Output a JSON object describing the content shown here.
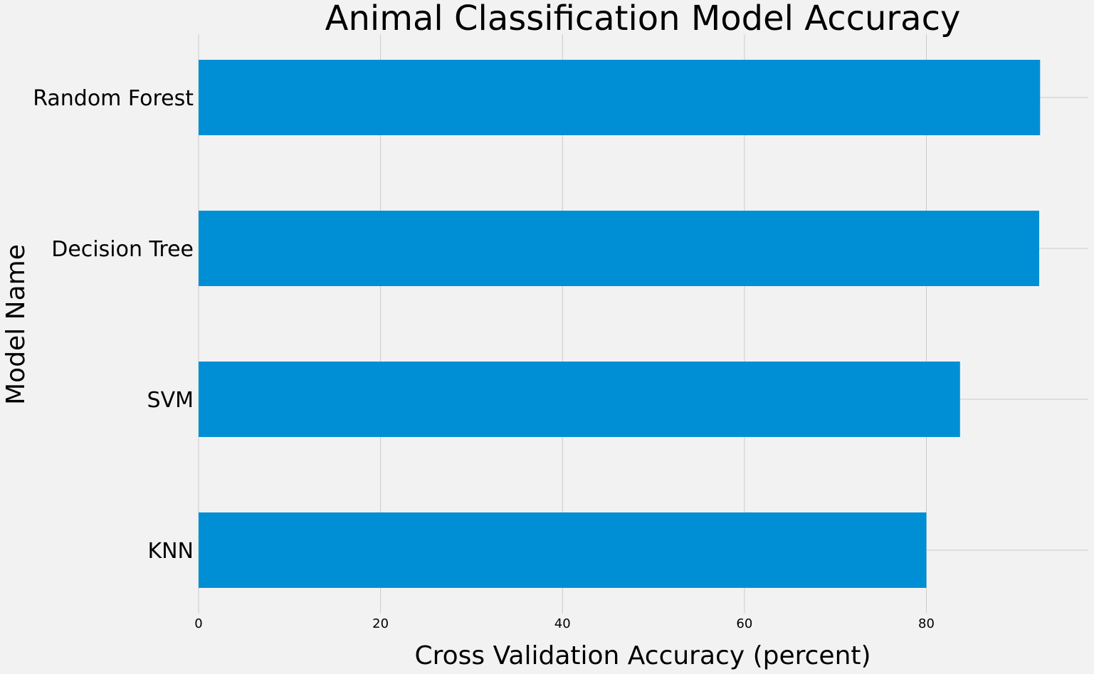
{
  "chart_data": {
    "type": "bar",
    "orientation": "horizontal",
    "title": "Animal Classification Model Accuracy",
    "xlabel": "Cross Validation Accuracy (percent)",
    "ylabel": "Model Name",
    "categories": [
      "KNN",
      "SVM",
      "Decision Tree",
      "Random Forest"
    ],
    "values": [
      80.0,
      83.7,
      92.4,
      92.5
    ],
    "xticks": [
      0,
      20,
      40,
      60,
      80
    ],
    "xlim": [
      0,
      97.8
    ],
    "grid": true,
    "legend": "none",
    "colors": {
      "background": "#f2f2f2",
      "bar": "#008fd5",
      "grid": "#cbcbcb"
    }
  }
}
